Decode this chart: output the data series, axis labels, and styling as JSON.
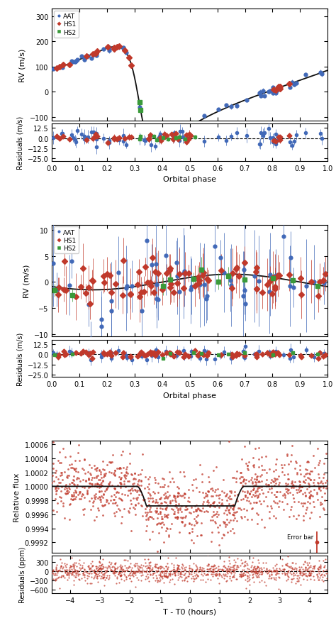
{
  "panel1": {
    "ylabel_main": "RV (m/s)",
    "ylabel_res": "Residuals (m/s)",
    "xlabel": "Orbital phase",
    "ylim_main": [
      -115,
      330
    ],
    "ylim_res": [
      -28,
      18
    ],
    "yticks_main": [
      -100,
      0,
      100,
      200,
      300
    ],
    "yticks_res": [
      -25.0,
      -12.5,
      0.0,
      12.5
    ],
    "aat_color": "#4169b8",
    "hs1_color": "#c0392b",
    "hs2_color": "#3a9a3a"
  },
  "panel2": {
    "ylabel_main": "RV (m/s)",
    "ylabel_res": "Residuals (m/s)",
    "xlabel": "Orbital phase",
    "ylim_main": [
      -10.5,
      11
    ],
    "ylim_res": [
      -28,
      18
    ],
    "yticks_main": [
      -10,
      -5,
      0,
      5,
      10
    ],
    "yticks_res": [
      -25.0,
      -12.5,
      0.0,
      12.5
    ],
    "aat_color": "#4169b8",
    "hs1_color": "#c0392b",
    "hs2_color": "#3a9a3a"
  },
  "panel3": {
    "ylabel_main": "Relative flux",
    "ylabel_res": "Residuals (ppm)",
    "xlabel": "T - T0 (hours)",
    "ylim_main": [
      0.99905,
      1.00065
    ],
    "ylim_res": [
      -700,
      500
    ],
    "yticks_main": [
      0.9992,
      0.9994,
      0.9996,
      0.9998,
      1.0,
      1.0002,
      1.0004,
      1.0006
    ],
    "yticks_res": [
      -600,
      -300,
      0,
      300
    ],
    "xlim": [
      -4.6,
      4.6
    ],
    "xticks": [
      -4,
      -3,
      -2,
      -1,
      0,
      1,
      2,
      3,
      4
    ],
    "data_color": "#c0392b",
    "transit_depth": 0.00028,
    "ingress_start": -1.75,
    "ingress_end": -1.45,
    "egress_start": 1.5,
    "egress_end": 1.8,
    "error_bar_x": 4.25,
    "error_bar_y": 0.9992,
    "error_bar_size": 0.00015
  },
  "curve_color": "#111111",
  "bg_color": "#ffffff",
  "legend_labels": [
    "AAT",
    "HS1",
    "HS2"
  ]
}
